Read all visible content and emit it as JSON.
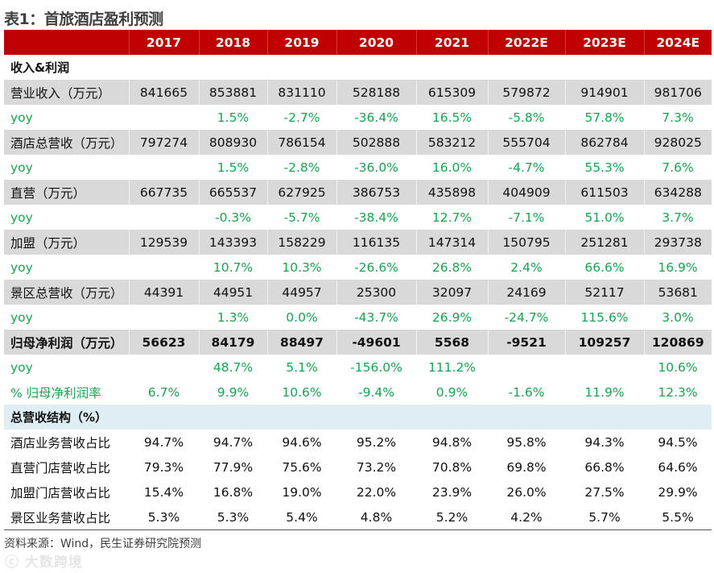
{
  "title": "表1：首旅酒店盈利预测",
  "columns": [
    "",
    "2017",
    "2018",
    "2019",
    "2020",
    "2021",
    "2022E",
    "2023E",
    "2024E"
  ],
  "rows": [
    {
      "style": "sect",
      "cells": [
        "收入&利润",
        "",
        "",
        "",
        "",
        "",
        "",
        "",
        ""
      ]
    },
    {
      "style": "gray",
      "cells": [
        "营业收入（万元）",
        "841665",
        "853881",
        "831110",
        "528188",
        "615309",
        "579872",
        "914901",
        "981706"
      ]
    },
    {
      "style": "green",
      "cells": [
        "yoy",
        "",
        "1.5%",
        "-2.7%",
        "-36.4%",
        "16.5%",
        "-5.8%",
        "57.8%",
        "7.3%"
      ]
    },
    {
      "style": "gray",
      "cells": [
        "酒店总营收（万元）",
        "797274",
        "808930",
        "786154",
        "502888",
        "583212",
        "555704",
        "862784",
        "928025"
      ]
    },
    {
      "style": "green",
      "cells": [
        "yoy",
        "",
        "1.5%",
        "-2.8%",
        "-36.0%",
        "16.0%",
        "-4.7%",
        "55.3%",
        "7.6%"
      ]
    },
    {
      "style": "gray",
      "cells": [
        "直营（万元）",
        "667735",
        "665537",
        "627925",
        "386753",
        "435898",
        "404909",
        "611503",
        "634288"
      ]
    },
    {
      "style": "green",
      "cells": [
        "yoy",
        "",
        "-0.3%",
        "-5.7%",
        "-38.4%",
        "12.7%",
        "-7.1%",
        "51.0%",
        "3.7%"
      ]
    },
    {
      "style": "gray",
      "cells": [
        "加盟（万元）",
        "129539",
        "143393",
        "158229",
        "116135",
        "147314",
        "150795",
        "251281",
        "293738"
      ]
    },
    {
      "style": "green",
      "cells": [
        "yoy",
        "",
        "10.7%",
        "10.3%",
        "-26.6%",
        "26.8%",
        "2.4%",
        "66.6%",
        "16.9%"
      ]
    },
    {
      "style": "gray",
      "cells": [
        "景区总营收（万元）",
        "44391",
        "44951",
        "44957",
        "25300",
        "32097",
        "24169",
        "52117",
        "53681"
      ]
    },
    {
      "style": "green",
      "cells": [
        "yoy",
        "",
        "1.3%",
        "0.0%",
        "-43.7%",
        "26.9%",
        "-24.7%",
        "115.6%",
        "3.0%"
      ]
    },
    {
      "style": "gray bold",
      "cells": [
        "归母净利润（万元）",
        "56623",
        "84179",
        "88497",
        "-49601",
        "5568",
        "-9521",
        "109257",
        "120869"
      ]
    },
    {
      "style": "green",
      "cells": [
        "yoy",
        "",
        "48.7%",
        "5.1%",
        "-156.0%",
        "111.2%",
        "",
        "",
        "10.6%"
      ]
    },
    {
      "style": "green",
      "cells": [
        "% 归母净利润率",
        "6.7%",
        "9.9%",
        "10.6%",
        "-9.4%",
        "0.9%",
        "-1.6%",
        "11.9%",
        "12.3%"
      ]
    },
    {
      "style": "blue sect",
      "cells": [
        "总营收结构（%）",
        "",
        "",
        "",
        "",
        "",
        "",
        "",
        ""
      ]
    },
    {
      "style": "",
      "cells": [
        "酒店业务营收占比",
        "94.7%",
        "94.7%",
        "94.6%",
        "95.2%",
        "94.8%",
        "95.8%",
        "94.3%",
        "94.5%"
      ]
    },
    {
      "style": "",
      "cells": [
        "直营门店营收占比",
        "79.3%",
        "77.9%",
        "75.6%",
        "73.2%",
        "70.8%",
        "69.8%",
        "66.8%",
        "64.6%"
      ]
    },
    {
      "style": "",
      "cells": [
        "加盟门店营收占比",
        "15.4%",
        "16.8%",
        "19.0%",
        "22.0%",
        "23.9%",
        "26.0%",
        "27.5%",
        "29.9%"
      ]
    },
    {
      "style": "last",
      "cells": [
        "景区业务营收占比",
        "5.3%",
        "5.3%",
        "5.4%",
        "4.8%",
        "5.2%",
        "4.2%",
        "5.7%",
        "5.5%"
      ]
    }
  ],
  "source": "资料来源：Wind，民生证券研究院预测",
  "watermark": "大数跨境",
  "colors": {
    "header": "#c00000",
    "gray_row": "#d9d9d9",
    "section_row": "#deeef4",
    "growth_text": "#1aa350"
  }
}
